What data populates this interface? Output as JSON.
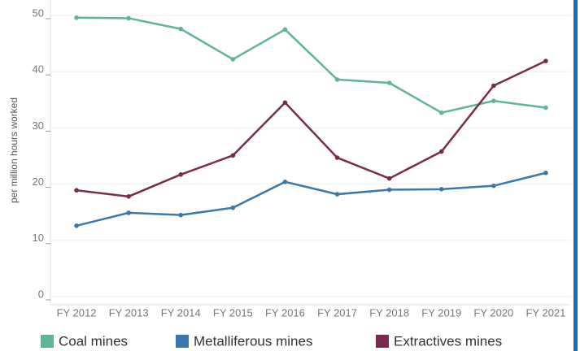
{
  "chart_data": {
    "type": "line",
    "y_label": "per million hours worked",
    "categories": [
      "FY 2012",
      "FY 2013",
      "FY 2014",
      "FY 2015",
      "FY 2016",
      "FY 2017",
      "FY 2018",
      "FY 2019",
      "FY 2020",
      "FY 2021"
    ],
    "series": [
      {
        "name": "Coal mines",
        "color": "#5fb596",
        "values": [
          49.6,
          49.5,
          47.6,
          42.2,
          47.5,
          38.6,
          38.0,
          32.7,
          34.8,
          33.6
        ]
      },
      {
        "name": "Metalliferous mines",
        "color": "#3a77aa",
        "values": [
          12.6,
          14.9,
          14.5,
          15.8,
          20.4,
          18.2,
          19.0,
          19.1,
          19.7,
          22.0
        ]
      },
      {
        "name": "Extractives mines",
        "color": "#7a2a4e",
        "values": [
          18.9,
          17.8,
          21.7,
          25.1,
          34.5,
          24.7,
          21.0,
          25.8,
          37.5,
          41.9
        ]
      }
    ],
    "ylim": [
      0,
      50
    ],
    "yticks": [
      0,
      10,
      20,
      30,
      40,
      50
    ],
    "grid": true,
    "legend": "bottom"
  }
}
